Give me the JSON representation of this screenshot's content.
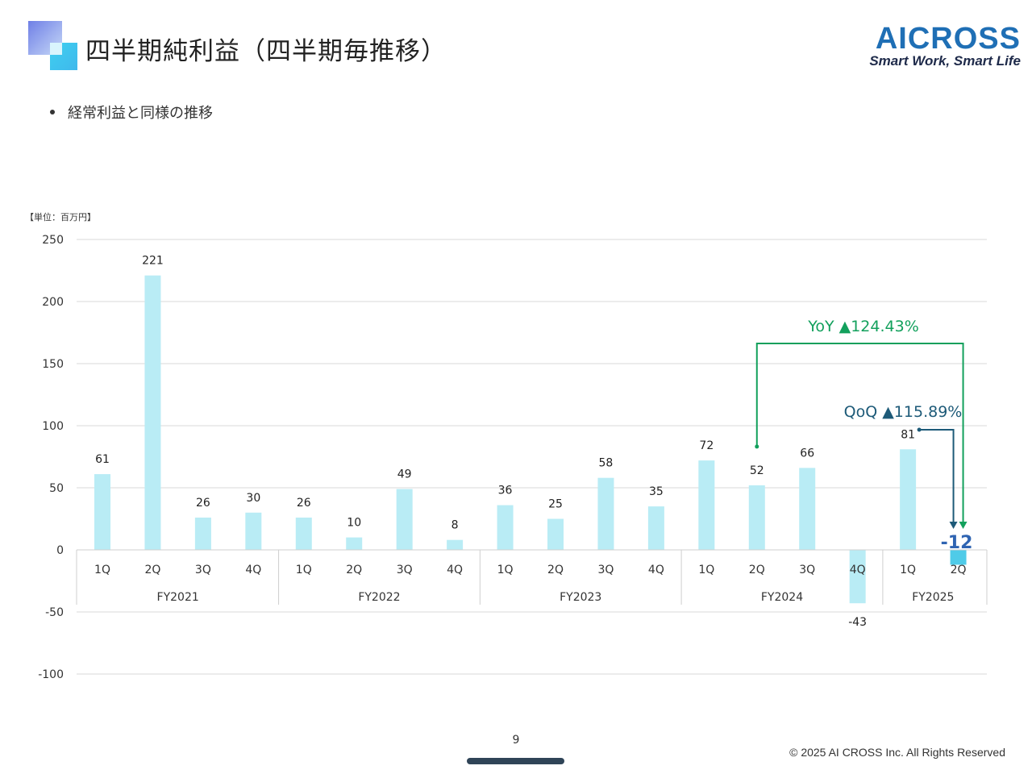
{
  "header": {
    "title": "四半期純利益（四半期毎推移）",
    "brand_name": "AICROSS",
    "brand_tagline": "Smart Work, Smart Life"
  },
  "bullet": "経常利益と同様の推移",
  "unit_label": "【単位：百万円】",
  "annotations": {
    "yoy": "YoY ▲124.43%",
    "qoq": "QoQ ▲115.89%"
  },
  "footer": {
    "page_number": "9",
    "copyright": "© 2025 AI CROSS Inc. All Rights Reserved"
  },
  "colors": {
    "bar": "#b9ecf5",
    "bar_highlight": "#4fcbe8",
    "yoy": "#12a05c",
    "qoq": "#1d5a78",
    "grid": "#d9d9d9",
    "highlight_label": "#2f64b2"
  },
  "chart_data": {
    "type": "bar",
    "categories": [
      "1Q",
      "2Q",
      "3Q",
      "4Q",
      "1Q",
      "2Q",
      "3Q",
      "4Q",
      "1Q",
      "2Q",
      "3Q",
      "4Q",
      "1Q",
      "2Q",
      "3Q",
      "4Q",
      "1Q",
      "2Q"
    ],
    "groups": [
      {
        "name": "FY2021",
        "count": 4
      },
      {
        "name": "FY2022",
        "count": 4
      },
      {
        "name": "FY2023",
        "count": 4
      },
      {
        "name": "FY2024",
        "count": 4
      },
      {
        "name": "FY2025",
        "count": 2
      }
    ],
    "values": [
      61,
      221,
      26,
      30,
      26,
      10,
      49,
      8,
      36,
      25,
      58,
      35,
      72,
      52,
      66,
      -43,
      81,
      -12
    ],
    "ylim": [
      -100,
      250
    ],
    "yticks": [
      250,
      200,
      150,
      100,
      50,
      0,
      -50,
      -100
    ],
    "grid": true,
    "highlight_index": 17
  }
}
